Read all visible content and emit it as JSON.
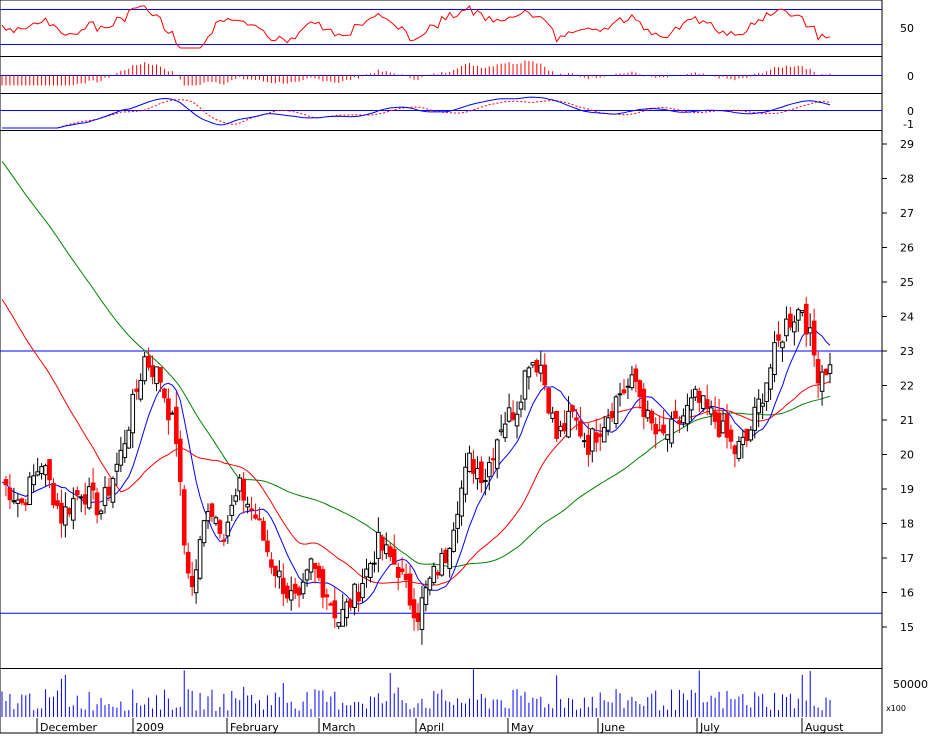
{
  "chart_data": {
    "type": "candlestick",
    "price_axis": {
      "ylim": [
        14.5,
        29.5
      ],
      "ticks": [
        "29",
        "28",
        "27",
        "26",
        "25",
        "24",
        "23",
        "22",
        "21",
        "20",
        "19",
        "18",
        "17",
        "16",
        "15"
      ]
    },
    "rsi_axis": {
      "ticks": [
        "50"
      ]
    },
    "histogram_axis": {
      "ticks": [
        "0"
      ]
    },
    "macd_axis": {
      "ticks": [
        "0",
        "-1"
      ]
    },
    "volume_axis": {
      "ticks": [
        "50000"
      ],
      "multiplier_label": "x100"
    },
    "months": [
      "December",
      "2009",
      "February",
      "March",
      "April",
      "May",
      "June",
      "July",
      "August"
    ],
    "horizontal_levels": {
      "resistance": 23.0,
      "support": 15.4
    },
    "series_colors": {
      "up": "#ffffff",
      "down": "#ff0000",
      "ma_short": "#0000ff",
      "ma_mid": "#ff0000",
      "ma_long": "#008000",
      "rsi": "#ff0000",
      "signal": "#ff0000",
      "grid_line": "#0000ff"
    },
    "anchors": [
      [
        0,
        19.2
      ],
      [
        5,
        18.6
      ],
      [
        10,
        19.8
      ],
      [
        15,
        18.2
      ],
      [
        20,
        19.0
      ],
      [
        25,
        18.4
      ],
      [
        30,
        20.0
      ],
      [
        36,
        22.8
      ],
      [
        40,
        22.2
      ],
      [
        42,
        21.3
      ],
      [
        44,
        20.5
      ],
      [
        46,
        17.4
      ],
      [
        48,
        16.1
      ],
      [
        52,
        18.6
      ],
      [
        56,
        17.8
      ],
      [
        60,
        19.0
      ],
      [
        64,
        18.2
      ],
      [
        68,
        16.9
      ],
      [
        72,
        16.0
      ],
      [
        75,
        15.6
      ],
      [
        78,
        16.8
      ],
      [
        82,
        16.0
      ],
      [
        85,
        15.2
      ],
      [
        90,
        16.1
      ],
      [
        95,
        17.4
      ],
      [
        100,
        16.7
      ],
      [
        103,
        15.8
      ],
      [
        105,
        15.4
      ],
      [
        108,
        16.3
      ],
      [
        112,
        17.1
      ],
      [
        115,
        18.6
      ],
      [
        118,
        19.8
      ],
      [
        122,
        19.4
      ],
      [
        126,
        20.9
      ],
      [
        130,
        21.4
      ],
      [
        133,
        22.8
      ],
      [
        136,
        22.6
      ],
      [
        140,
        20.5
      ],
      [
        144,
        21.1
      ],
      [
        148,
        20.3
      ],
      [
        152,
        21.0
      ],
      [
        156,
        21.8
      ],
      [
        160,
        22.1
      ],
      [
        163,
        21.0
      ],
      [
        166,
        20.4
      ],
      [
        170,
        20.8
      ],
      [
        175,
        21.6
      ],
      [
        180,
        21.0
      ],
      [
        185,
        20.1
      ],
      [
        188,
        20.4
      ],
      [
        192,
        21.8
      ],
      [
        195,
        22.9
      ],
      [
        198,
        23.8
      ],
      [
        202,
        24.3
      ],
      [
        206,
        22.4
      ],
      [
        209,
        22.6
      ]
    ]
  }
}
